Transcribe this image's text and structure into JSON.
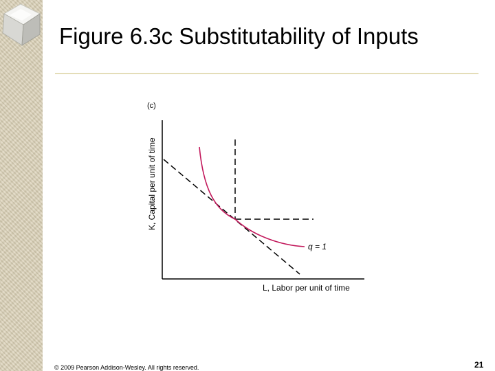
{
  "slide": {
    "title": "Figure 6.3c Substitutability of Inputs",
    "copyright": "© 2009 Pearson Addison-Wesley. All rights reserved.",
    "page_number": "21"
  },
  "diagram": {
    "panel_label": "(c)",
    "y_axis_label": "K, Capital per unit of time",
    "x_axis_label": "L, Labor per unit of time",
    "curve_label": "q = 1",
    "curve_color": "#c2185b",
    "dash_color": "#000000"
  },
  "decor": {
    "icon": "glass-cube-icon"
  }
}
